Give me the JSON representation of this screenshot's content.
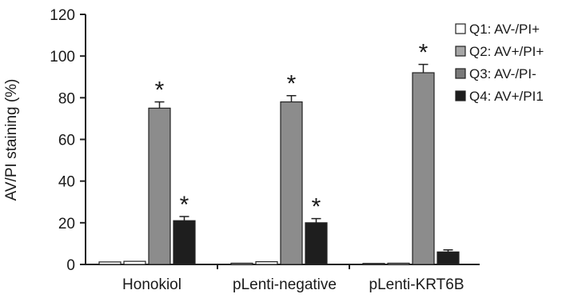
{
  "chart_data": {
    "type": "bar",
    "title": "",
    "xlabel": "",
    "ylabel": "AV/PI staining (%)",
    "ylim": [
      0,
      120
    ],
    "yticks": [
      "0",
      "20",
      "40",
      "60",
      "80",
      "100",
      "120"
    ],
    "categories": [
      "Honokiol",
      "pLenti-negative",
      "pLenti-KRT6B"
    ],
    "series": [
      {
        "name": "Q1: AV-/PI+",
        "color": "#ffffff",
        "values": [
          1.2,
          0.6,
          0.5
        ],
        "errors": [
          0.3,
          0.2,
          0.2
        ],
        "significant": [
          false,
          false,
          false
        ]
      },
      {
        "name": "Q2: AV+/PI+",
        "color": "#ffffff",
        "values": [
          1.5,
          1.3,
          0.6
        ],
        "errors": [
          0.3,
          0.3,
          0.2
        ],
        "significant": [
          false,
          false,
          false
        ]
      },
      {
        "name": "Q3: AV-/PI-",
        "color": "#8c8c8c",
        "values": [
          75,
          78,
          92
        ],
        "errors": [
          3,
          3,
          4
        ],
        "significant": [
          true,
          true,
          true
        ]
      },
      {
        "name": "Q4: AV+/PI1",
        "color": "#1e1e1e",
        "values": [
          21,
          20,
          6
        ],
        "errors": [
          2,
          2,
          1
        ],
        "significant": [
          true,
          true,
          false
        ]
      }
    ],
    "legend_swatches": [
      "#ffffff",
      "#a6a6a6",
      "#7a7a7a",
      "#1e1e1e"
    ],
    "significance_marker": "*",
    "legend_position": "top-right",
    "grid": false
  }
}
